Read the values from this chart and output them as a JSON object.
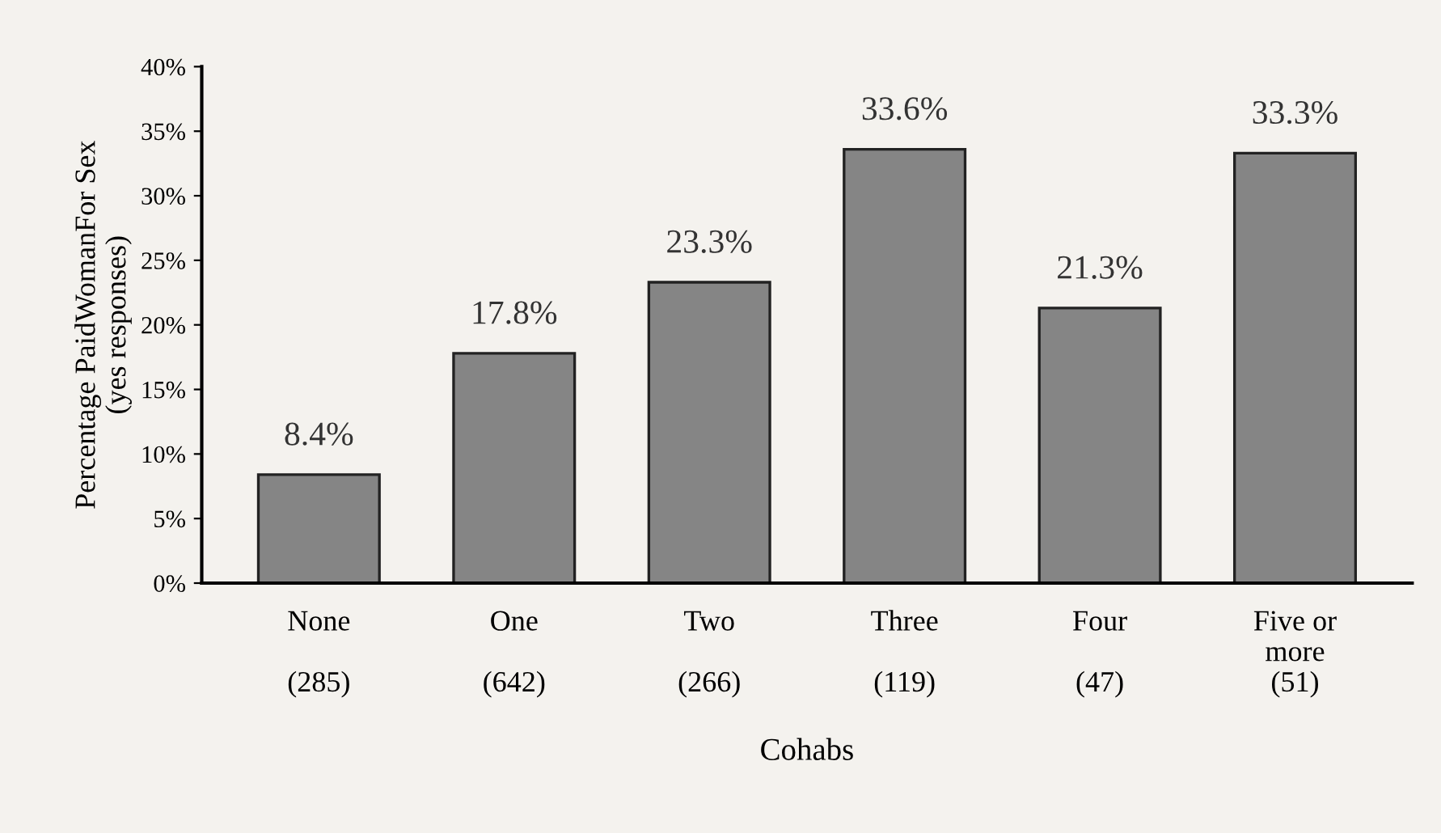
{
  "chart_data": {
    "type": "bar",
    "ylabel": "Percentage PaidWomanFor Sex\n(yes responses)",
    "xlabel": "Cohabs",
    "categories": [
      "None\n\n(285)",
      "One\n\n(642)",
      "Two\n\n(266)",
      "Three\n\n(119)",
      "Four\n\n(47)",
      "Five or\nmore\n(51)"
    ],
    "values": [
      8.4,
      17.8,
      23.3,
      33.6,
      21.3,
      33.3
    ],
    "value_labels": [
      "8.4%",
      "17.8%",
      "23.3%",
      "33.6%",
      "21.3%",
      "33.3%"
    ],
    "color": "#858585",
    "ylim": [
      0,
      40
    ],
    "yticks": [
      {
        "value": 0,
        "label": "0%"
      },
      {
        "value": 5,
        "label": "5%"
      },
      {
        "value": 10,
        "label": "10%"
      },
      {
        "value": 15,
        "label": "15%"
      },
      {
        "value": 20,
        "label": "20%"
      },
      {
        "value": 25,
        "label": "25%"
      },
      {
        "value": 30,
        "label": "30%"
      },
      {
        "value": 35,
        "label": "35%"
      },
      {
        "value": 40,
        "label": "40%"
      }
    ],
    "grid": false,
    "legend": false
  }
}
